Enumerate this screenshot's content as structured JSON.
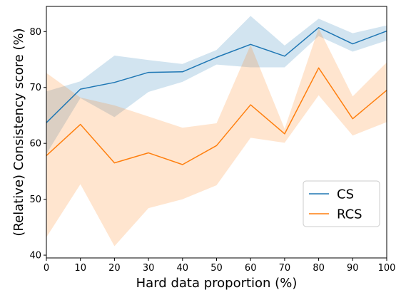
{
  "chart_data": {
    "type": "line",
    "title": "",
    "xlabel": "Hard data proportion (%)",
    "ylabel": "(Relative) Consistency score (%)",
    "xlim": [
      0,
      100
    ],
    "ylim": [
      39.5,
      84.5
    ],
    "x": [
      0,
      10,
      20,
      30,
      40,
      50,
      60,
      70,
      80,
      90,
      100
    ],
    "xticks": [
      0,
      10,
      20,
      30,
      40,
      50,
      60,
      70,
      80,
      90,
      100
    ],
    "yticks": [
      40,
      50,
      60,
      70,
      80
    ],
    "grid": false,
    "legend_position": "lower-right",
    "series": [
      {
        "name": "CS",
        "color": "#1f77b4",
        "values": [
          63.7,
          69.7,
          70.9,
          72.7,
          72.8,
          75.4,
          77.7,
          75.6,
          80.7,
          77.8,
          80.1
        ],
        "upper": [
          69.3,
          71.1,
          75.7,
          74.9,
          74.2,
          76.7,
          82.8,
          77.5,
          82.3,
          79.7,
          81.1
        ],
        "lower": [
          58.1,
          68.1,
          64.7,
          69.2,
          71.0,
          74.1,
          73.6,
          73.6,
          79.2,
          76.4,
          78.4
        ]
      },
      {
        "name": "RCS",
        "color": "#ff7f0e",
        "values": [
          57.8,
          63.4,
          56.5,
          58.3,
          56.2,
          59.6,
          66.9,
          61.7,
          73.5,
          64.4,
          69.5
        ],
        "upper": [
          72.6,
          68.2,
          66.8,
          64.8,
          62.8,
          63.6,
          77.6,
          62.6,
          80.6,
          68.4,
          74.5
        ],
        "lower": [
          43.2,
          52.7,
          41.6,
          48.4,
          50.0,
          52.5,
          61.0,
          60.1,
          68.6,
          61.4,
          63.8
        ]
      }
    ]
  }
}
